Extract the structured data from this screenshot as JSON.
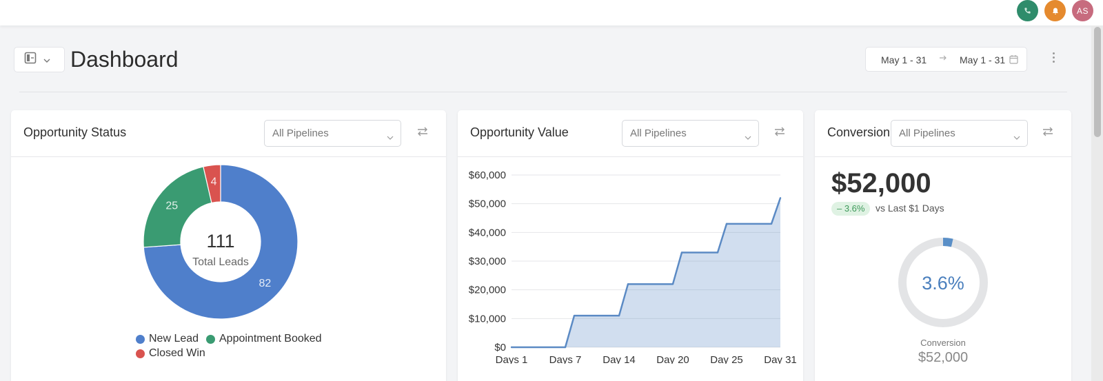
{
  "header": {
    "title": "Dashboard",
    "avatar_initials": "AS",
    "icons": [
      "phone-icon",
      "bell-icon"
    ],
    "colors": {
      "phone": "#2f8c6b",
      "bell": "#e58a2e",
      "avatar": "#c76b7e"
    }
  },
  "date_range": {
    "start": "May 1 - 31",
    "end": "May 1 - 31"
  },
  "cards": {
    "status": {
      "title": "Opportunity Status",
      "pipeline": "All Pipelines"
    },
    "value": {
      "title": "Opportunity Value",
      "pipeline": "All Pipelines"
    },
    "conversion": {
      "title": "Conversion",
      "pipeline": "All Pipelines"
    }
  },
  "status_chart": {
    "center_value": "111",
    "center_label": "Total Leads",
    "legend": [
      "New Lead",
      "Appointment Booked",
      "Closed Win"
    ]
  },
  "conversion": {
    "value": "$52,000",
    "change": "– 3.6%",
    "vs_text": "vs Last $1 Days",
    "gauge_label": "3.6%",
    "gauge_caption": "Conversion",
    "gauge_value": "$52,000",
    "percent": 3.6
  },
  "chart_data": [
    {
      "type": "pie",
      "categories": [
        "New Lead",
        "Appointment Booked",
        "Closed Win"
      ],
      "values": [
        82,
        25,
        4
      ],
      "colors": [
        "#4f7fcb",
        "#3a9b72",
        "#d9534f"
      ],
      "total": 111
    },
    {
      "type": "area",
      "x": [
        "Days 1",
        "Days 7",
        "Day 14",
        "Day 20",
        "Day 25",
        "Day 31"
      ],
      "series": [
        {
          "points": [
            [
              1,
              0
            ],
            [
              7,
              0
            ],
            [
              8,
              11000
            ],
            [
              13,
              11000
            ],
            [
              14,
              22000
            ],
            [
              19,
              22000
            ],
            [
              20,
              33000
            ],
            [
              24,
              33000
            ],
            [
              25,
              43000
            ],
            [
              30,
              43000
            ],
            [
              31,
              52000
            ]
          ]
        }
      ],
      "ylim": [
        0,
        60000
      ],
      "yticks": [
        "$0",
        "$10,000",
        "$20,000",
        "$30,000",
        "$40,000",
        "$50,000",
        "$60,000"
      ],
      "color": "#5b8ac4"
    }
  ]
}
